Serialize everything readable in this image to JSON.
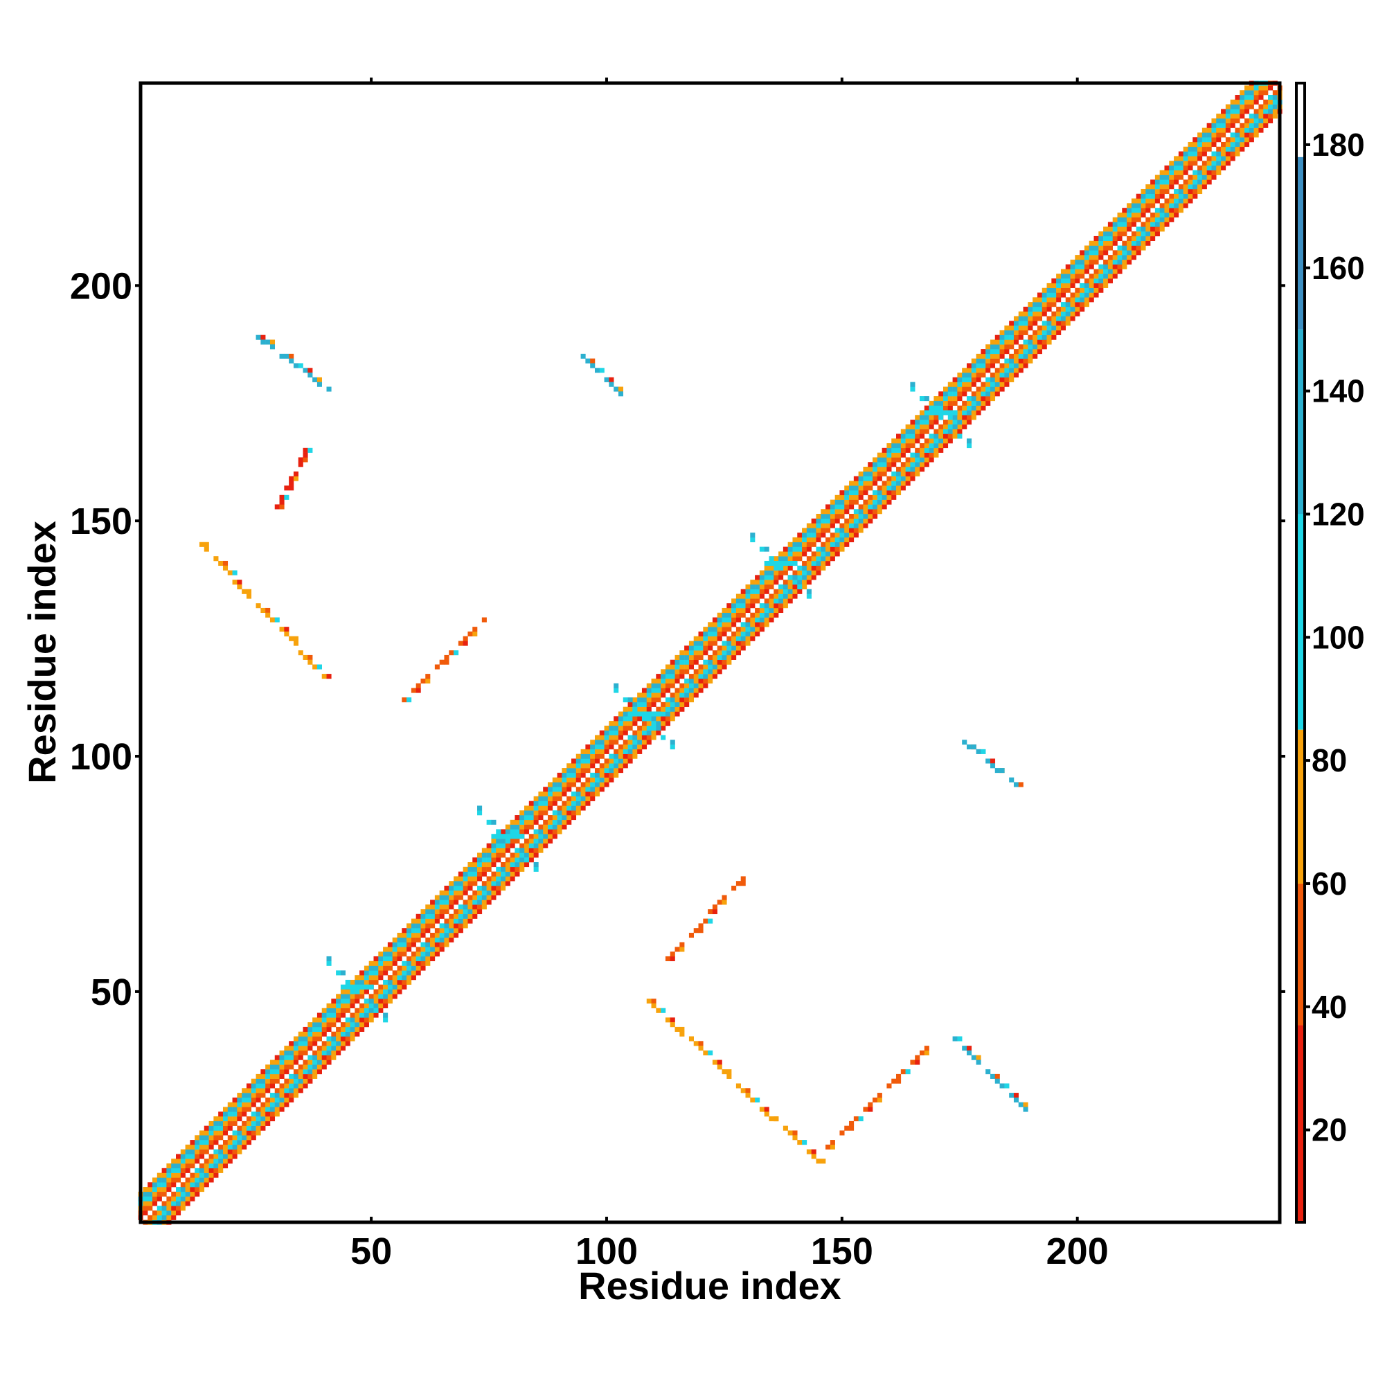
{
  "chart_data": {
    "type": "heatmap",
    "title": "",
    "xlabel": "Residue index",
    "ylabel": "Residue index",
    "xlim": [
      1,
      243
    ],
    "ylim": [
      1,
      243
    ],
    "x_ticks": [
      50,
      100,
      150,
      200
    ],
    "y_ticks": [
      50,
      100,
      150,
      200
    ],
    "grid": false,
    "colorbar": {
      "ticks": [
        20,
        40,
        60,
        80,
        100,
        120,
        140,
        160,
        180
      ],
      "range": [
        5,
        190
      ],
      "bands": [
        {
          "from": 5,
          "to": 37,
          "color": "#e8210f"
        },
        {
          "from": 37,
          "to": 60,
          "color": "#f05a0a"
        },
        {
          "from": 60,
          "to": 85,
          "color": "#f7a20c"
        },
        {
          "from": 85,
          "to": 120,
          "color": "#1fd6e6"
        },
        {
          "from": 120,
          "to": 150,
          "color": "#2cb0cf"
        },
        {
          "from": 150,
          "to": 178,
          "color": "#3d8fc2"
        },
        {
          "from": 178,
          "to": 190,
          "color": "#ffffff"
        }
      ]
    },
    "diagonal_band": {
      "from": 1,
      "to": 243,
      "width": 6
    },
    "contact_segments": [
      {
        "x": [
          26,
          41
        ],
        "y": [
          189,
          178
        ],
        "color": "#2cb0cf"
      },
      {
        "x": [
          30,
          37
        ],
        "y": [
          153,
          166
        ],
        "color": "#e8210f"
      },
      {
        "x": [
          14,
          40
        ],
        "y": [
          145,
          117
        ],
        "color": "#f7a20c"
      },
      {
        "x": [
          57,
          74
        ],
        "y": [
          112,
          129
        ],
        "color": "#f05a0a"
      },
      {
        "x": [
          94,
          104
        ],
        "y": [
          186,
          176
        ],
        "color": "#2cb0cf"
      },
      {
        "x": [
          113,
          129
        ],
        "y": [
          57,
          74
        ],
        "color": "#f05a0a"
      },
      {
        "x": [
          109,
          145
        ],
        "y": [
          48,
          14
        ],
        "color": "#f7a20c"
      },
      {
        "x": [
          147,
          169
        ],
        "y": [
          17,
          39
        ],
        "color": "#f05a0a"
      },
      {
        "x": [
          174,
          189
        ],
        "y": [
          40,
          25
        ],
        "color": "#2cb0cf"
      },
      {
        "x": [
          175,
          187
        ],
        "y": [
          104,
          94
        ],
        "color": "#2cb0cf"
      }
    ],
    "contact_clusters": [
      {
        "x": 47,
        "y": 50,
        "color": "#1fd6e6"
      },
      {
        "x": 79,
        "y": 82,
        "color": "#1fd6e6"
      },
      {
        "x": 108,
        "y": 108,
        "color": "#1fd6e6"
      },
      {
        "x": 137,
        "y": 140,
        "color": "#1fd6e6"
      },
      {
        "x": 171,
        "y": 172,
        "color": "#1fd6e6"
      }
    ]
  }
}
